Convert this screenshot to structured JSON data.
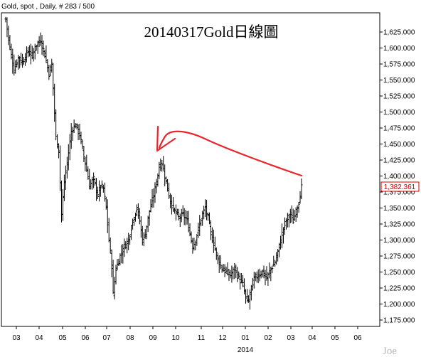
{
  "header": {
    "text": "Gold, spot , Daily, # 283 / 500"
  },
  "chart_data": {
    "type": "ohlc",
    "title": "20140317Gold日線圖",
    "ylim": [
      1165,
      1655
    ],
    "y_ticks": [
      "1,625.000",
      "1,600.000",
      "1,575.000",
      "1,550.000",
      "1,525.000",
      "1,500.000",
      "1,475.000",
      "1,450.000",
      "1,425.000",
      "1,400.000",
      "1,375.000",
      "1,350.000",
      "1,325.000",
      "1,300.000",
      "1,275.000",
      "1,250.000",
      "1,225.000",
      "1,200.000",
      "1,175.000"
    ],
    "x_ticks": [
      "03",
      "04",
      "05",
      "06",
      "07",
      "08",
      "09",
      "10",
      "11",
      "12",
      "01",
      "02",
      "03",
      "04",
      "05",
      "06"
    ],
    "year_label": "2014",
    "current_price": "1,382.361",
    "last_value": 1382.361,
    "anchors": [
      [
        0,
        1645
      ],
      [
        3,
        1600
      ],
      [
        6,
        1565
      ],
      [
        9,
        1585
      ],
      [
        12,
        1578
      ],
      [
        16,
        1595
      ],
      [
        19,
        1588
      ],
      [
        22,
        1605
      ],
      [
        25,
        1612
      ],
      [
        28,
        1590
      ],
      [
        31,
        1560
      ],
      [
        33,
        1575
      ],
      [
        36,
        1460
      ],
      [
        38,
        1440
      ],
      [
        40,
        1340
      ],
      [
        42,
        1390
      ],
      [
        44,
        1420
      ],
      [
        47,
        1470
      ],
      [
        50,
        1480
      ],
      [
        53,
        1465
      ],
      [
        56,
        1430
      ],
      [
        58,
        1410
      ],
      [
        60,
        1385
      ],
      [
        63,
        1395
      ],
      [
        66,
        1370
      ],
      [
        68,
        1385
      ],
      [
        70,
        1380
      ],
      [
        72,
        1350
      ],
      [
        74,
        1300
      ],
      [
        76,
        1260
      ],
      [
        77,
        1215
      ],
      [
        79,
        1255
      ],
      [
        82,
        1275
      ],
      [
        85,
        1290
      ],
      [
        88,
        1300
      ],
      [
        91,
        1330
      ],
      [
        94,
        1350
      ],
      [
        96,
        1330
      ],
      [
        98,
        1300
      ],
      [
        100,
        1310
      ],
      [
        103,
        1345
      ],
      [
        106,
        1370
      ],
      [
        108,
        1390
      ],
      [
        110,
        1415
      ],
      [
        112,
        1420
      ],
      [
        114,
        1400
      ],
      [
        116,
        1380
      ],
      [
        118,
        1360
      ],
      [
        121,
        1345
      ],
      [
        124,
        1335
      ],
      [
        127,
        1340
      ],
      [
        130,
        1330
      ],
      [
        132,
        1310
      ],
      [
        134,
        1290
      ],
      [
        136,
        1300
      ],
      [
        139,
        1325
      ],
      [
        141,
        1340
      ],
      [
        143,
        1350
      ],
      [
        145,
        1335
      ],
      [
        147,
        1310
      ],
      [
        149,
        1295
      ],
      [
        152,
        1270
      ],
      [
        155,
        1255
      ],
      [
        158,
        1250
      ],
      [
        161,
        1245
      ],
      [
        164,
        1255
      ],
      [
        167,
        1240
      ],
      [
        170,
        1230
      ],
      [
        172,
        1210
      ],
      [
        174,
        1205
      ],
      [
        176,
        1225
      ],
      [
        178,
        1240
      ],
      [
        181,
        1245
      ],
      [
        184,
        1250
      ],
      [
        187,
        1240
      ],
      [
        190,
        1255
      ],
      [
        193,
        1265
      ],
      [
        196,
        1290
      ],
      [
        198,
        1310
      ],
      [
        200,
        1325
      ],
      [
        202,
        1335
      ],
      [
        204,
        1340
      ],
      [
        206,
        1330
      ],
      [
        208,
        1345
      ],
      [
        210,
        1360
      ],
      [
        212,
        1382
      ]
    ],
    "annotation": {
      "type": "arrow",
      "color": "#e8262d",
      "points_to": "September 2013 swing high"
    },
    "signature": "Joe",
    "grid": false
  }
}
